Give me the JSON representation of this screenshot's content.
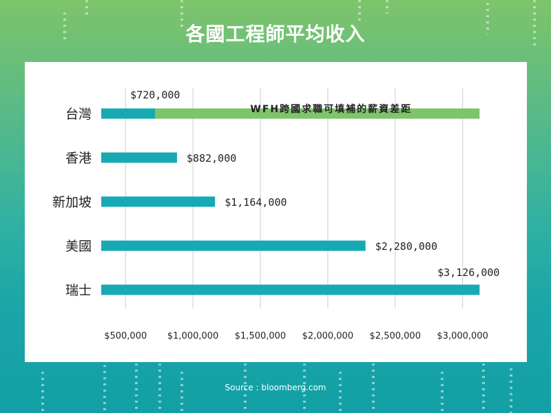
{
  "page": {
    "title": "各國工程師平均收入",
    "source": "Source : bloomberg.com"
  },
  "colors": {
    "bar": "#17a9b4",
    "gap_bar": "#7dc46a",
    "grid": "#cccccc"
  },
  "chart_data": {
    "type": "bar",
    "orientation": "horizontal",
    "title": "",
    "xlabel": "",
    "ylabel": "",
    "categories": [
      "台灣",
      "香港",
      "新加坡",
      "美國",
      "瑞士"
    ],
    "values": [
      720000,
      882000,
      1164000,
      2280000,
      3126000
    ],
    "value_labels": [
      "$720,000",
      "$882,000",
      "$1,164,000",
      "$2,280,000",
      "$3,126,000"
    ],
    "xlim": [
      320000,
      3150000
    ],
    "xticks": [
      500000,
      1000000,
      1500000,
      2000000,
      2500000,
      3000000
    ],
    "xtick_labels": [
      "$500,000",
      "$1,000,000",
      "$1,500,000",
      "$2,000,000",
      "$2,500,000",
      "$3,000,000"
    ],
    "grid": true,
    "annotation": {
      "category": "台灣",
      "from": 720000,
      "to": 3126000,
      "text": "WFH跨國求職可填補的薪資差距"
    }
  }
}
